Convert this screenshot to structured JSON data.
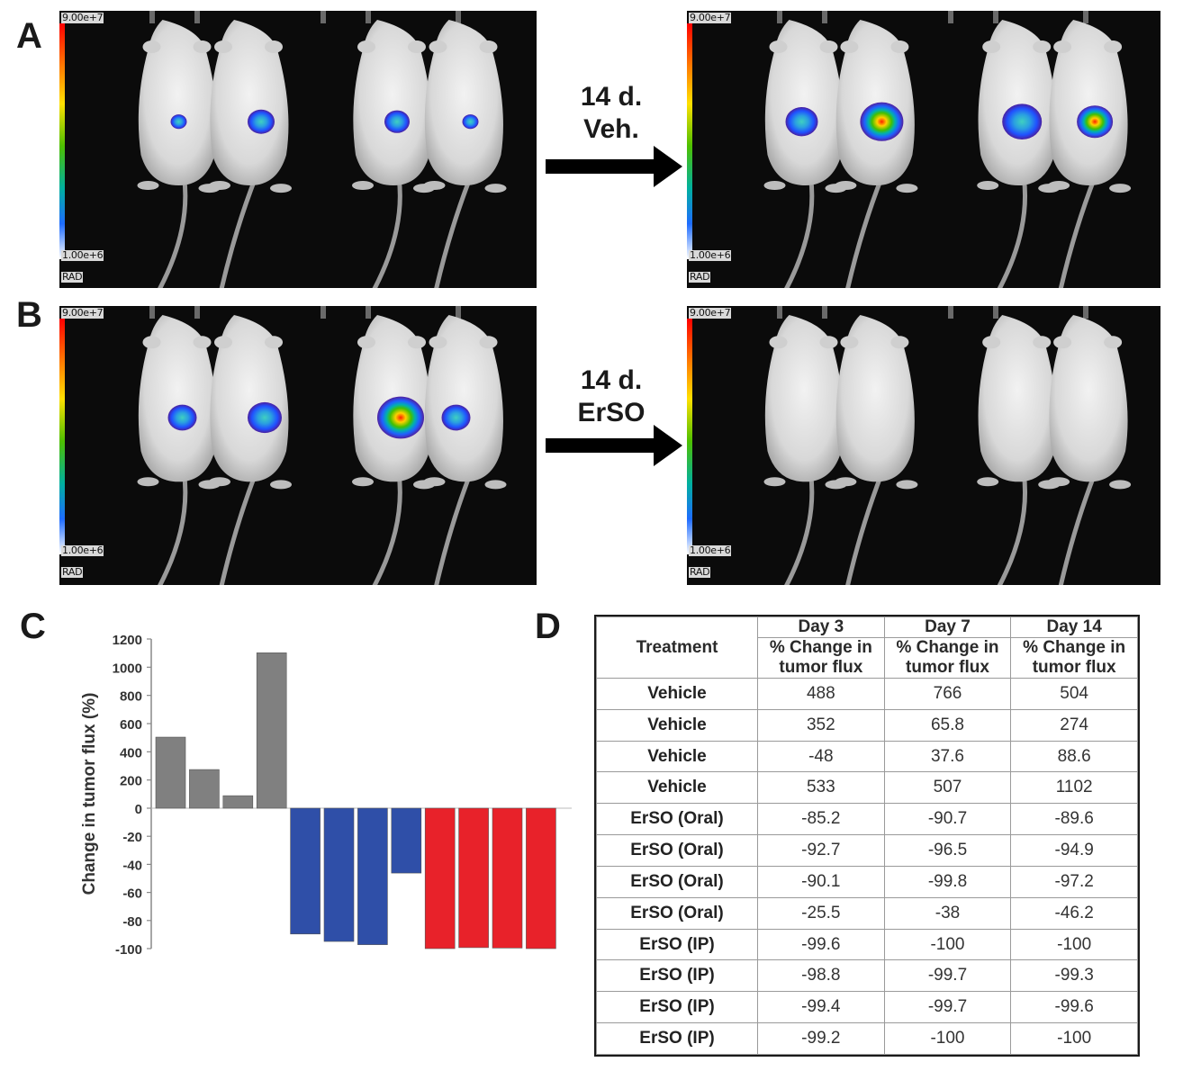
{
  "panels": {
    "A": "A",
    "B": "B",
    "C": "C",
    "D": "D"
  },
  "imaging": {
    "scale_max": "9.00e+7",
    "scale_min": "1.00e+6",
    "scale_unit": "RAD",
    "arrow_A": {
      "line1": "14 d.",
      "line2": "Veh."
    },
    "arrow_B": {
      "line1": "14 d.",
      "line2": "ErSO"
    },
    "colors": {
      "background": "#0b0b0b",
      "scale_top": "#ff0000",
      "scale_bottom": "#ffffff"
    }
  },
  "chart_data": {
    "type": "bar",
    "ylabel": "Change in tumor flux (%)",
    "y_ticks_upper": [
      0,
      200,
      400,
      600,
      800,
      1000,
      1200
    ],
    "y_ticks_lower": [
      0,
      -20,
      -40,
      -60,
      -80,
      -100
    ],
    "upper_range": [
      0,
      1200
    ],
    "lower_range": [
      -100,
      0
    ],
    "series": [
      {
        "group": "Vehicle",
        "color": "#808080",
        "values": [
          504,
          274,
          88.6,
          1102
        ]
      },
      {
        "group": "ErSO (Oral)",
        "color": "#2f4fa8",
        "values": [
          -89.6,
          -94.9,
          -97.2,
          -46.2
        ]
      },
      {
        "group": "ErSO (IP)",
        "color": "#e8222a",
        "values": [
          -100,
          -99.3,
          -99.6,
          -100
        ]
      }
    ]
  },
  "table": {
    "treatment_header": "Treatment",
    "days": [
      "Day 3",
      "Day 7",
      "Day 14"
    ],
    "subheader_line1": "% Change in",
    "subheader_line2": "tumor flux",
    "rows": [
      {
        "treatment": "Vehicle",
        "d3": "488",
        "d7": "766",
        "d14": "504"
      },
      {
        "treatment": "Vehicle",
        "d3": "352",
        "d7": "65.8",
        "d14": "274"
      },
      {
        "treatment": "Vehicle",
        "d3": "-48",
        "d7": "37.6",
        "d14": "88.6"
      },
      {
        "treatment": "Vehicle",
        "d3": "533",
        "d7": "507",
        "d14": "1102"
      },
      {
        "treatment": "ErSO (Oral)",
        "d3": "-85.2",
        "d7": "-90.7",
        "d14": "-89.6"
      },
      {
        "treatment": "ErSO (Oral)",
        "d3": "-92.7",
        "d7": "-96.5",
        "d14": "-94.9"
      },
      {
        "treatment": "ErSO (Oral)",
        "d3": "-90.1",
        "d7": "-99.8",
        "d14": "-97.2"
      },
      {
        "treatment": "ErSO (Oral)",
        "d3": "-25.5",
        "d7": "-38",
        "d14": "-46.2"
      },
      {
        "treatment": "ErSO (IP)",
        "d3": "-99.6",
        "d7": "-100",
        "d14": "-100"
      },
      {
        "treatment": "ErSO (IP)",
        "d3": "-98.8",
        "d7": "-99.7",
        "d14": "-99.3"
      },
      {
        "treatment": "ErSO (IP)",
        "d3": "-99.4",
        "d7": "-99.7",
        "d14": "-99.6"
      },
      {
        "treatment": "ErSO (IP)",
        "d3": "-99.2",
        "d7": "-100",
        "d14": "-100"
      }
    ]
  }
}
